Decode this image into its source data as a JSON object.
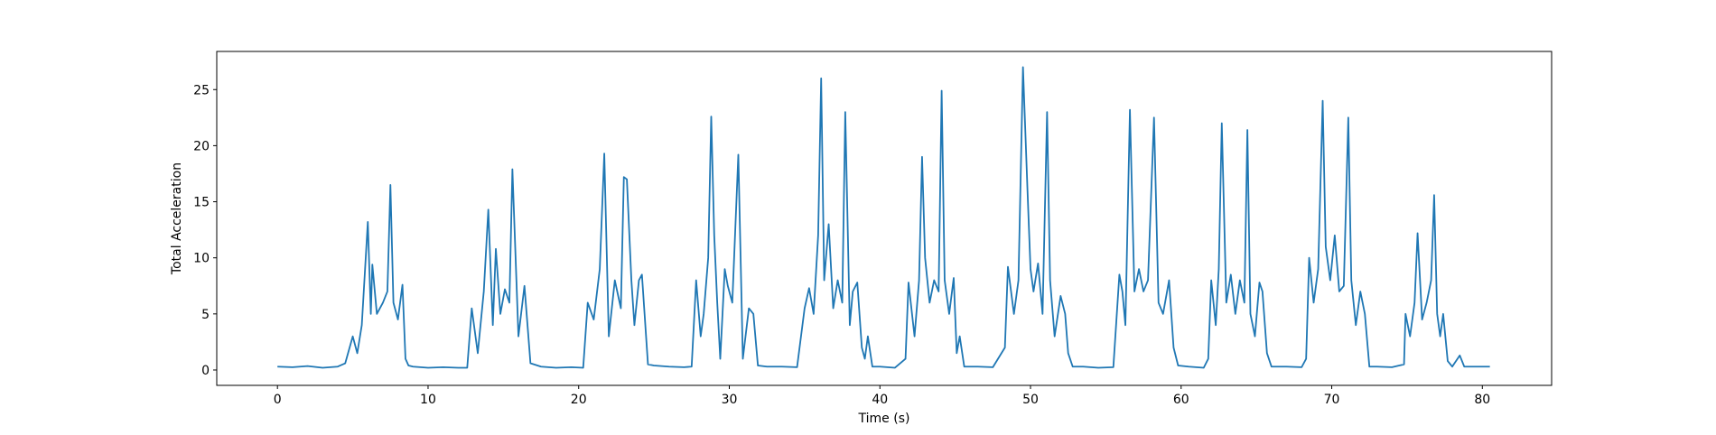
{
  "chart_data": {
    "type": "line",
    "xlabel": "Time (s)",
    "ylabel": "Total Acceleration",
    "xlim": [
      -4.03,
      84.6
    ],
    "ylim": [
      -1.37,
      28.4
    ],
    "xticks": [
      0,
      10,
      20,
      30,
      40,
      50,
      60,
      70,
      80
    ],
    "yticks": [
      0,
      5,
      10,
      15,
      20,
      25
    ],
    "x": [
      0,
      1,
      2,
      3,
      4,
      4.5,
      5,
      5.3,
      5.6,
      6.0,
      6.2,
      6.3,
      6.6,
      7.0,
      7.3,
      7.5,
      7.7,
      8.0,
      8.3,
      8.5,
      8.7,
      9,
      10,
      11,
      12,
      12.6,
      12.9,
      13.3,
      13.7,
      14.0,
      14.3,
      14.5,
      14.8,
      15.1,
      15.4,
      15.6,
      16.0,
      16.4,
      16.8,
      17.5,
      18.5,
      19.5,
      20.3,
      20.6,
      21.0,
      21.4,
      21.7,
      22.0,
      22.4,
      22.8,
      23.0,
      23.2,
      23.5,
      23.7,
      24.0,
      24.2,
      24.6,
      25,
      26,
      27,
      27.5,
      27.8,
      28.1,
      28.3,
      28.6,
      28.8,
      29.0,
      29.2,
      29.4,
      29.7,
      29.9,
      30.2,
      30.6,
      30.9,
      31.3,
      31.6,
      31.9,
      32.5,
      33.5,
      34.5,
      35.0,
      35.3,
      35.6,
      35.9,
      36.1,
      36.3,
      36.6,
      36.9,
      37.2,
      37.5,
      37.7,
      38.0,
      38.2,
      38.5,
      38.8,
      39.0,
      39.2,
      39.5,
      40,
      41,
      41.7,
      41.9,
      42.3,
      42.6,
      42.8,
      43.0,
      43.3,
      43.6,
      43.9,
      44.1,
      44.3,
      44.6,
      44.9,
      45.1,
      45.3,
      45.6,
      46.5,
      47.5,
      48.3,
      48.5,
      48.9,
      49.2,
      49.5,
      49.8,
      50.0,
      50.2,
      50.5,
      50.8,
      51.1,
      51.3,
      51.6,
      52.0,
      52.3,
      52.5,
      52.8,
      53.5,
      54.5,
      55.5,
      55.9,
      56.1,
      56.3,
      56.6,
      56.9,
      57.2,
      57.5,
      57.8,
      58.2,
      58.5,
      58.8,
      59.2,
      59.5,
      59.8,
      60.5,
      61.5,
      61.8,
      62.0,
      62.3,
      62.5,
      62.7,
      63.0,
      63.3,
      63.6,
      63.9,
      64.2,
      64.4,
      64.6,
      64.9,
      65.2,
      65.4,
      65.7,
      66.0,
      67,
      68,
      68.3,
      68.5,
      68.8,
      69.1,
      69.4,
      69.6,
      69.9,
      70.2,
      70.5,
      70.8,
      71.1,
      71.3,
      71.6,
      71.9,
      72.2,
      72.5,
      73,
      74,
      74.8,
      74.9,
      75.2,
      75.5,
      75.7,
      76.0,
      76.3,
      76.6,
      76.8,
      77.0,
      77.2,
      77.4,
      77.7,
      78.0,
      78.5,
      78.8,
      79.5,
      80.5
    ],
    "series": [
      {
        "color": "#1f77b4",
        "values": [
          0.3,
          0.25,
          0.35,
          0.2,
          0.3,
          0.6,
          3,
          1.5,
          4,
          13.2,
          5,
          9.4,
          5,
          6,
          7,
          16.5,
          6,
          4.5,
          7.6,
          1,
          0.4,
          0.3,
          0.2,
          0.25,
          0.2,
          0.2,
          5.5,
          1.5,
          7,
          14.3,
          4,
          10.8,
          5,
          7.2,
          6,
          17.9,
          3,
          7.5,
          0.6,
          0.3,
          0.2,
          0.25,
          0.2,
          6,
          4.5,
          9,
          19.3,
          3,
          8,
          5.5,
          17.2,
          17,
          8,
          4,
          8,
          8.5,
          0.5,
          0.4,
          0.3,
          0.25,
          0.3,
          8,
          3,
          5,
          10,
          22.6,
          12,
          6,
          1,
          9,
          7.5,
          6,
          19.2,
          1,
          5.5,
          5,
          0.4,
          0.3,
          0.3,
          0.25,
          5.5,
          7.3,
          5,
          12,
          26,
          8,
          13,
          5.5,
          8,
          6,
          23,
          4,
          7,
          7.8,
          2,
          1,
          3,
          0.3,
          0.3,
          0.2,
          1,
          7.8,
          3,
          8,
          19,
          10,
          6,
          8,
          7,
          24.9,
          8,
          5,
          8.2,
          1.5,
          3,
          0.3,
          0.3,
          0.25,
          2,
          9.2,
          5,
          8,
          27,
          16,
          9,
          7,
          9.5,
          5,
          23,
          8,
          3,
          6.6,
          5,
          1.5,
          0.3,
          0.3,
          0.2,
          0.25,
          8.5,
          7,
          4,
          23.2,
          7,
          9,
          7,
          8,
          22.5,
          6,
          5,
          8,
          2,
          0.4,
          0.3,
          0.2,
          1,
          8,
          4,
          9,
          22,
          6,
          8.5,
          5,
          8,
          6,
          21.4,
          5,
          3,
          7.8,
          7,
          1.5,
          0.3,
          0.3,
          0.25,
          1,
          10,
          6,
          9,
          24,
          11,
          8,
          12,
          7,
          7.5,
          22.5,
          8,
          4,
          7,
          5,
          0.3,
          0.3,
          0.25,
          0.5,
          5,
          3,
          6,
          12.2,
          4.5,
          6,
          8,
          15.6,
          5,
          3,
          5,
          0.8,
          0.3,
          1.3,
          0.3,
          0.3,
          0.3
        ]
      }
    ]
  }
}
